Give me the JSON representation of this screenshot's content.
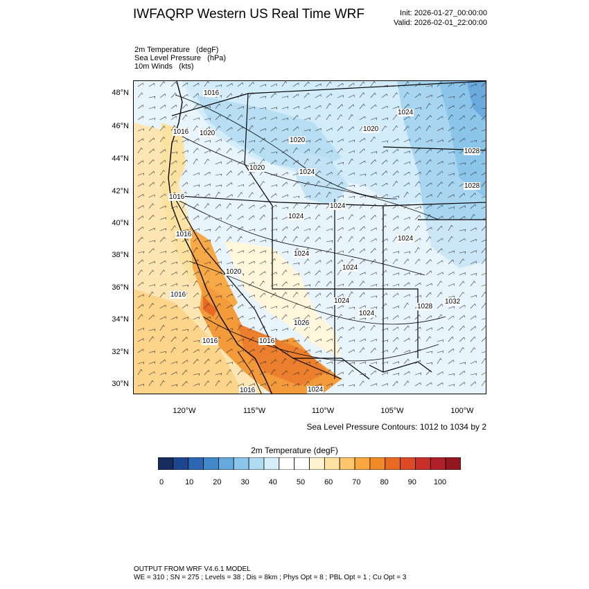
{
  "header": {
    "title": "IWFAQRP Western US Real Time WRF",
    "init": "Init: 2026-01-27_00:00:00",
    "valid": "Valid: 2026-02-01_22:00:00"
  },
  "fields": [
    "2m Temperature   (degF)",
    "Sea Level Pressure   (hPa)",
    "10m Winds   (kts)"
  ],
  "axes": {
    "lat_labels": [
      "48°N",
      "46°N",
      "44°N",
      "42°N",
      "40°N",
      "38°N",
      "36°N",
      "34°N",
      "32°N",
      "30°N"
    ],
    "lon_labels": [
      "120°W",
      "115°W",
      "110°W",
      "105°W",
      "100°W"
    ]
  },
  "contour_note": "Sea Level Pressure Contours: 1012 to 1034 by 2",
  "slp_labels": [
    "1016",
    "1016",
    "1016",
    "1016",
    "1020",
    "1016",
    "1016",
    "1016",
    "1020",
    "1020",
    "1024",
    "1020",
    "1020",
    "1024",
    "1024",
    "1024",
    "1024",
    "1024",
    "1024",
    "1024",
    "1024",
    "1028",
    "1032",
    "1028",
    "1024",
    "1016",
    "1026",
    "1028"
  ],
  "colorbar": {
    "title": "2m Temperature  (degF)",
    "tick_labels": [
      "0",
      "10",
      "20",
      "30",
      "40",
      "50",
      "60",
      "70",
      "80",
      "90",
      "100"
    ],
    "colors": [
      "#162c5c",
      "#1f4690",
      "#2c67b3",
      "#4289c9",
      "#66a9dc",
      "#8cc5ea",
      "#b0dbf3",
      "#d6eefa",
      "#ffffff",
      "#ffffff",
      "#fff3cf",
      "#fee2a3",
      "#fdc66c",
      "#f9a741",
      "#f28a27",
      "#ea6a23",
      "#dd4b26",
      "#c9302a",
      "#b1202a",
      "#92171f"
    ]
  },
  "footer": {
    "line1": "OUTPUT FROM WRF V4.6.1 MODEL",
    "line2": "WE = 310 ; SN = 275 ; Levels = 38 ; Dis = 8km ; Phys Opt = 8 ; PBL Opt = 1 ; Cu Opt = 3"
  }
}
